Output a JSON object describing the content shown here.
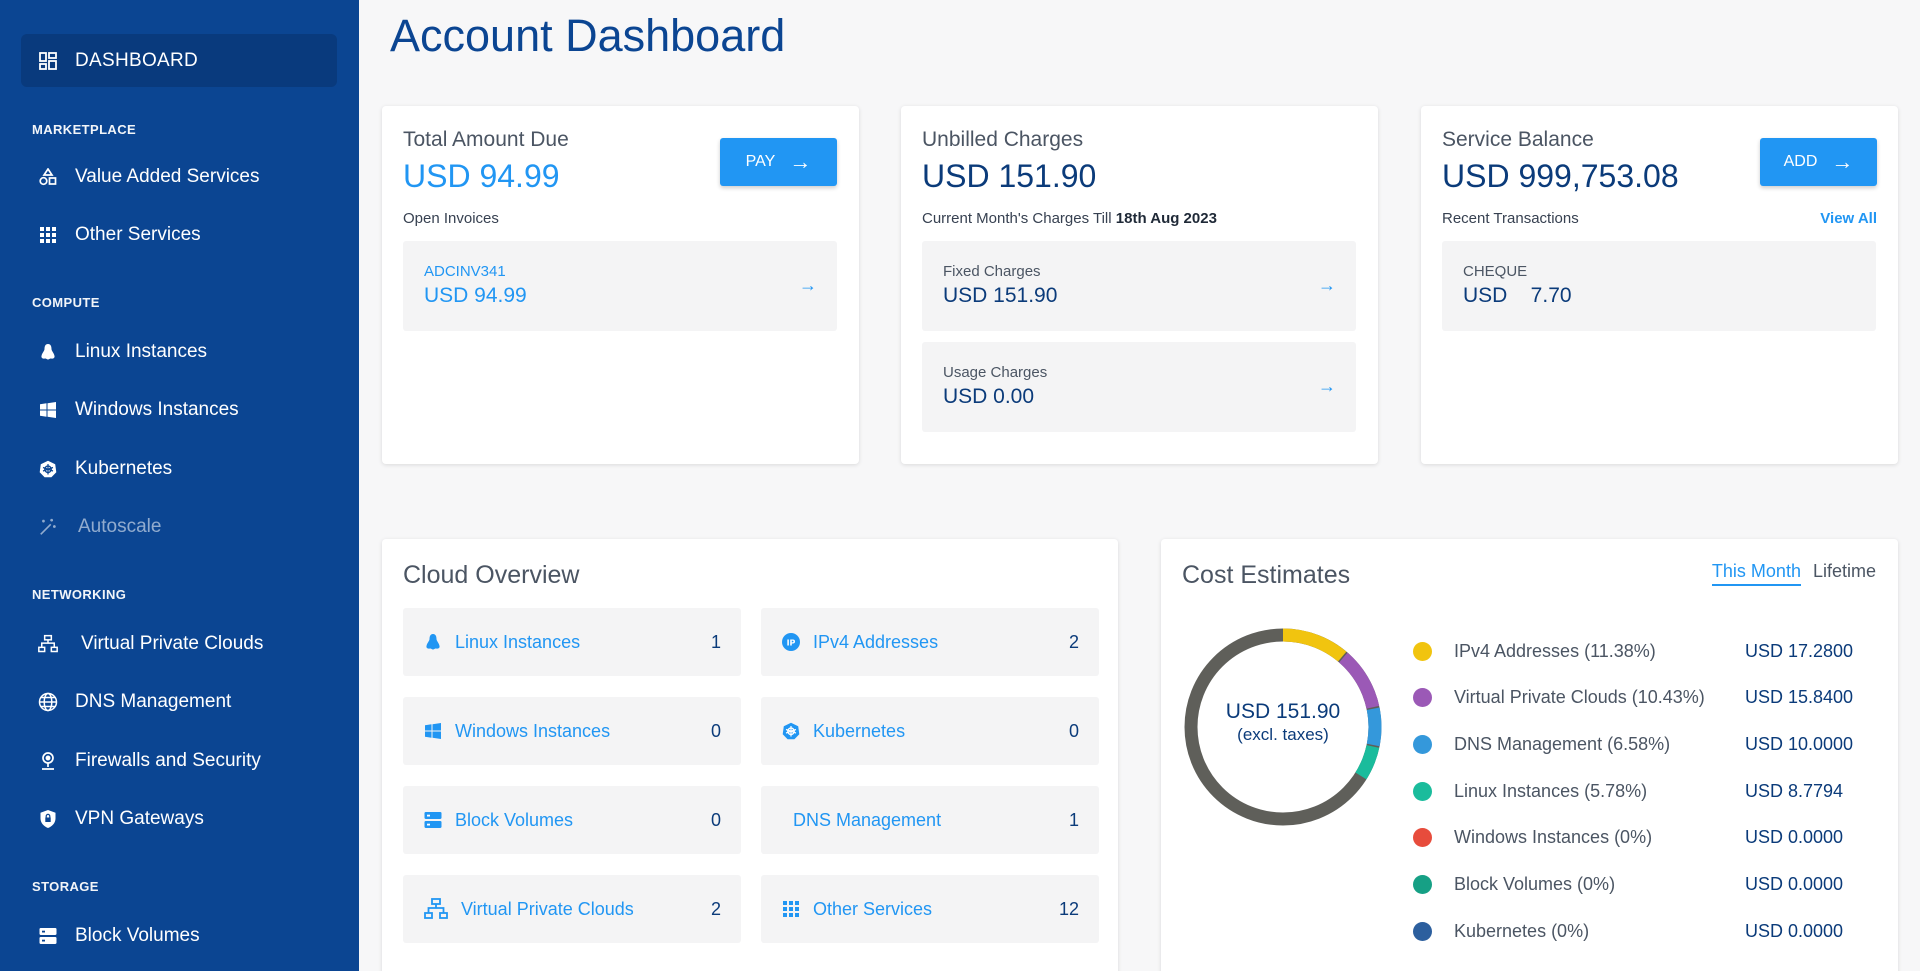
{
  "sidebar": {
    "active": {
      "label": "DASHBOARD",
      "icon": "dashboard-icon"
    },
    "sections": [
      {
        "title": "MARKETPLACE"
      },
      {
        "title": "COMPUTE"
      },
      {
        "title": "NETWORKING"
      },
      {
        "title": "STORAGE"
      }
    ],
    "items": [
      {
        "label": "Value Added Services",
        "icon": "shapes-icon"
      },
      {
        "label": "Other Services",
        "icon": "grid-icon"
      },
      {
        "label": "Linux Instances",
        "icon": "linux-icon"
      },
      {
        "label": "Windows Instances",
        "icon": "windows-icon"
      },
      {
        "label": "Kubernetes",
        "icon": "kubernetes-icon"
      },
      {
        "label": "Autoscale",
        "icon": "magic-wand-icon"
      },
      {
        "label": "Virtual Private Clouds",
        "icon": "network-icon"
      },
      {
        "label": "DNS Management",
        "icon": "globe-icon"
      },
      {
        "label": "Firewalls and Security",
        "icon": "firewall-icon"
      },
      {
        "label": "VPN Gateways",
        "icon": "shield-icon"
      },
      {
        "label": "Block Volumes",
        "icon": "storage-icon"
      }
    ]
  },
  "page": {
    "title": "Account Dashboard"
  },
  "due": {
    "title": "Total Amount Due",
    "amount": "USD 94.99",
    "button": "PAY",
    "sub": "Open Invoices",
    "invoice_id": "ADCINV341",
    "invoice_amount": "USD 94.99"
  },
  "unbilled": {
    "title": "Unbilled Charges",
    "amount": "USD 151.90",
    "sub_prefix": "Current Month's Charges Till ",
    "sub_date": "18th Aug 2023",
    "fixed_label": "Fixed Charges",
    "fixed_value": "USD 151.90",
    "usage_label": "Usage Charges",
    "usage_value": "USD 0.00"
  },
  "balance": {
    "title": "Service Balance",
    "amount": "USD 999,753.08",
    "button": "ADD",
    "sub": "Recent Transactions",
    "view_all": "View All",
    "txn_label": "CHEQUE",
    "txn_value": "USD    7.70"
  },
  "overview": {
    "title": "Cloud Overview",
    "items": [
      {
        "label": "Linux Instances",
        "count": "1",
        "icon": "linux-icon"
      },
      {
        "label": "IPv4 Addresses",
        "count": "2",
        "icon": "ip-icon"
      },
      {
        "label": "Windows Instances",
        "count": "0",
        "icon": "windows-icon"
      },
      {
        "label": "Kubernetes",
        "count": "0",
        "icon": "kubernetes-icon"
      },
      {
        "label": "Block Volumes",
        "count": "0",
        "icon": "storage-icon"
      },
      {
        "label": "DNS Management",
        "count": "1",
        "icon": ""
      },
      {
        "label": "Virtual Private Clouds",
        "count": "2",
        "icon": "network-icon"
      },
      {
        "label": "Other Services",
        "count": "12",
        "icon": "grid-icon"
      }
    ]
  },
  "costs": {
    "title": "Cost Estimates",
    "tabs": [
      "This Month",
      "Lifetime"
    ],
    "center_amount": "USD 151.90",
    "center_note": "(excl. taxes)",
    "colors": {
      "remainder": "#5f5f5a"
    },
    "legend": [
      {
        "name": "IPv4 Addresses (11.38%)",
        "value": "USD 17.2800",
        "color": "#f1c40f",
        "pct": 11.38
      },
      {
        "name": "Virtual Private Clouds (10.43%)",
        "value": "USD 15.8400",
        "color": "#9b59b6",
        "pct": 10.43
      },
      {
        "name": "DNS Management (6.58%)",
        "value": "USD 10.0000",
        "color": "#3498db",
        "pct": 6.58
      },
      {
        "name": "Linux Instances (5.78%)",
        "value": "USD 8.7794",
        "color": "#1abc9c",
        "pct": 5.78
      },
      {
        "name": "Windows Instances (0%)",
        "value": "USD 0.0000",
        "color": "#e74c3c",
        "pct": 0
      },
      {
        "name": "Block Volumes (0%)",
        "value": "USD 0.0000",
        "color": "#16a085",
        "pct": 0
      },
      {
        "name": "Kubernetes (0%)",
        "value": "USD 0.0000",
        "color": "#2c5f9e",
        "pct": 0
      }
    ]
  }
}
